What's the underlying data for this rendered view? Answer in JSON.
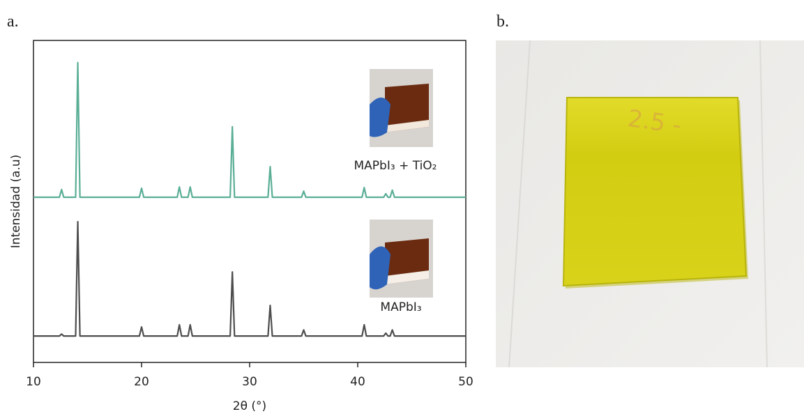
{
  "chart_data": {
    "type": "line",
    "panel_label": "a.",
    "x_label": "2θ (°)",
    "y_label": "Intensidad (a.u)",
    "xlim": [
      10,
      50
    ],
    "xticks": [
      10,
      20,
      30,
      40,
      50
    ],
    "ylim": [
      0,
      100
    ],
    "x": [
      10,
      12.4,
      12.6,
      12.8,
      13.9,
      14.1,
      14.3,
      19.8,
      20.0,
      20.2,
      23.3,
      23.5,
      23.7,
      24.3,
      24.5,
      24.7,
      28.2,
      28.4,
      28.6,
      31.7,
      31.9,
      32.1,
      34.8,
      35.0,
      35.2,
      40.4,
      40.6,
      40.8,
      42.4,
      42.6,
      42.8,
      43.0,
      43.2,
      43.4,
      50
    ],
    "series": [
      {
        "name": "MAPbI₃ + TiO₂",
        "color": "#5aae96",
        "values": [
          51.3,
          51.3,
          53.7,
          51.3,
          51.3,
          93.1,
          51.3,
          51.3,
          54.1,
          51.3,
          51.3,
          54.5,
          51.3,
          51.3,
          54.5,
          51.3,
          51.3,
          73.2,
          51.3,
          51.3,
          60.8,
          51.3,
          51.3,
          53.2,
          51.3,
          51.3,
          54.3,
          51.3,
          51.3,
          52.4,
          51.3,
          51.3,
          53.5,
          51.3,
          51.3
        ]
      },
      {
        "name": "MAPbI₃",
        "color": "#4d4d4d",
        "values": [
          8.2,
          8.2,
          8.8,
          8.2,
          8.2,
          43.7,
          8.2,
          8.2,
          11.0,
          8.2,
          8.2,
          11.7,
          8.2,
          8.2,
          11.7,
          8.2,
          8.2,
          28.1,
          8.2,
          8.2,
          17.7,
          8.2,
          8.2,
          10.1,
          8.2,
          8.2,
          11.7,
          8.2,
          8.2,
          9.1,
          8.2,
          8.2,
          10.1,
          8.2,
          8.2
        ]
      }
    ]
  },
  "photo": {
    "panel_label": "b."
  }
}
